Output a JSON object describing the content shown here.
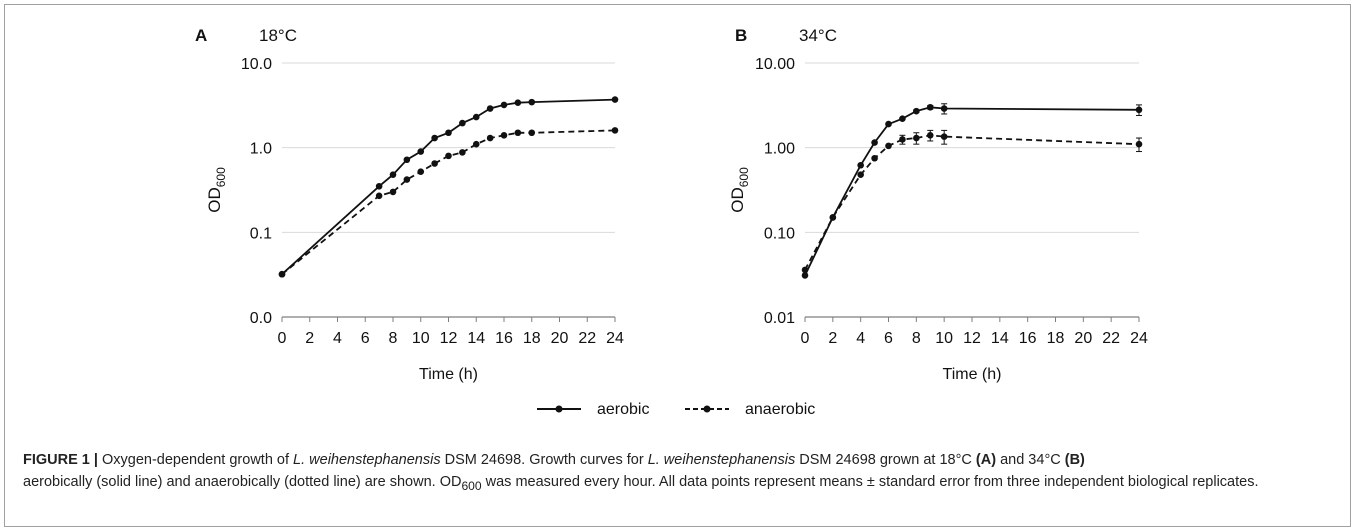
{
  "chart_data": [
    {
      "type": "line",
      "panel_label": "A",
      "title": "18°C",
      "xlabel": "Time (h)",
      "ylabel": "OD",
      "ylabel_sub": "600",
      "y_scale": "log",
      "ylim": [
        0.01,
        10
      ],
      "xlim": [
        0,
        24
      ],
      "x_ticks": [
        "0",
        "2",
        "4",
        "6",
        "8",
        "10",
        "12",
        "14",
        "16",
        "18",
        "20",
        "22",
        "24"
      ],
      "y_ticks": [
        {
          "value": 0.01,
          "label": "0.0"
        },
        {
          "value": 0.1,
          "label": "0.1"
        },
        {
          "value": 1,
          "label": "1.0"
        },
        {
          "value": 10,
          "label": "10.0"
        }
      ],
      "grid": "horizontal",
      "series": [
        {
          "name": "aerobic",
          "style": "solid",
          "x": [
            0,
            7,
            8,
            9,
            10,
            11,
            12,
            13,
            14,
            15,
            16,
            17,
            18,
            24
          ],
          "y": [
            0.032,
            0.35,
            0.48,
            0.72,
            0.9,
            1.3,
            1.5,
            1.95,
            2.3,
            2.9,
            3.2,
            3.4,
            3.45,
            3.7
          ]
        },
        {
          "name": "anaerobic",
          "style": "dashed",
          "x": [
            0,
            7,
            8,
            9,
            10,
            11,
            12,
            13,
            14,
            15,
            16,
            17,
            18,
            24
          ],
          "y": [
            0.032,
            0.27,
            0.3,
            0.42,
            0.52,
            0.65,
            0.8,
            0.88,
            1.1,
            1.3,
            1.4,
            1.5,
            1.5,
            1.6
          ]
        }
      ]
    },
    {
      "type": "line",
      "panel_label": "B",
      "title": "34°C",
      "xlabel": "Time (h)",
      "ylabel": "OD",
      "ylabel_sub": "600",
      "y_scale": "log",
      "ylim": [
        0.01,
        10
      ],
      "xlim": [
        0,
        24
      ],
      "x_ticks": [
        "0",
        "2",
        "4",
        "6",
        "8",
        "10",
        "12",
        "14",
        "16",
        "18",
        "20",
        "22",
        "24"
      ],
      "y_ticks": [
        {
          "value": 0.01,
          "label": "0.01"
        },
        {
          "value": 0.1,
          "label": "0.10"
        },
        {
          "value": 1,
          "label": "1.00"
        },
        {
          "value": 10,
          "label": "10.00"
        }
      ],
      "grid": "horizontal",
      "series": [
        {
          "name": "aerobic",
          "style": "solid",
          "x": [
            0,
            2,
            4,
            5,
            6,
            7,
            8,
            9,
            10,
            24
          ],
          "y": [
            0.031,
            0.15,
            0.62,
            1.15,
            1.9,
            2.2,
            2.7,
            3.0,
            2.9,
            2.8
          ],
          "err": [
            0,
            0,
            0,
            0,
            0,
            0,
            0.1,
            0.15,
            0.4,
            0.4
          ]
        },
        {
          "name": "anaerobic",
          "style": "dashed",
          "x": [
            0,
            2,
            4,
            5,
            6,
            7,
            8,
            9,
            10,
            24
          ],
          "y": [
            0.036,
            0.15,
            0.48,
            0.75,
            1.05,
            1.25,
            1.3,
            1.4,
            1.35,
            1.1
          ],
          "err": [
            0,
            0,
            0,
            0,
            0,
            0.15,
            0.2,
            0.2,
            0.25,
            0.2
          ]
        }
      ]
    }
  ],
  "legend": {
    "items": [
      {
        "label": "aerobic",
        "style": "solid"
      },
      {
        "label": "anaerobic",
        "style": "dashed"
      }
    ]
  },
  "caption": {
    "label": "FIGURE 1 |",
    "t1": " Oxygen-dependent growth of ",
    "species1": "L. weihenstephanensis",
    "t2": " DSM 24698. Growth curves for ",
    "species2": "L. weihenstephanensis",
    "t3": " DSM 24698 grown at 18°C ",
    "refA": "(A)",
    "t4": " and 34°C ",
    "refB": "(B)",
    "t5": " aerobically (solid line) and anaerobically (dotted line) are shown. OD",
    "sub": "600",
    "t6": " was measured every hour. All data points represent means ± standard error from three independent biological replicates."
  },
  "colors": {
    "line": "#111111",
    "grid": "#d9d9d9",
    "axis": "#7f7f7f",
    "text": "#111111"
  }
}
